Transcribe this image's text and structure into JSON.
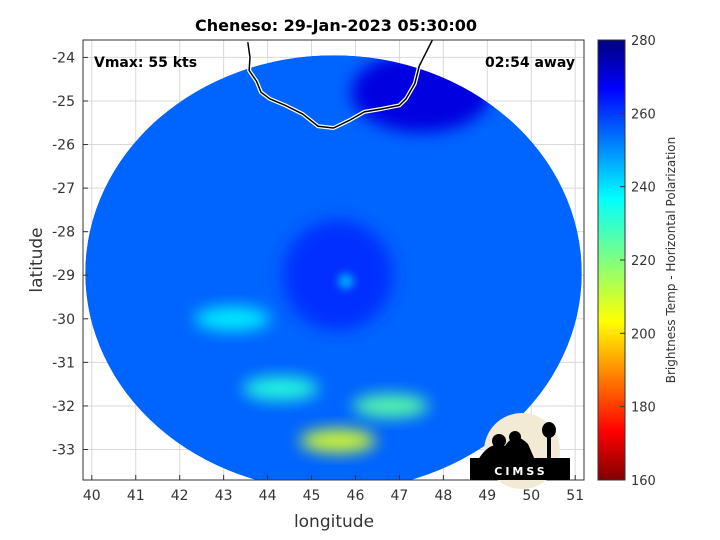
{
  "chart_data": {
    "type": "heatmap",
    "title": "Cheneso: 29-Jan-2023 05:30:00",
    "xlabel": "longitude",
    "ylabel": "latitude",
    "xlim": [
      39.8,
      51.2
    ],
    "ylim": [
      -33.7,
      -23.6
    ],
    "xticks": [
      "40",
      "41",
      "42",
      "43",
      "44",
      "45",
      "46",
      "47",
      "48",
      "49",
      "50",
      "51"
    ],
    "yticks": [
      "-24",
      "-25",
      "-26",
      "-27",
      "-28",
      "-29",
      "-30",
      "-31",
      "-32",
      "-33"
    ],
    "grid": true,
    "vmax_text": "Vmax: 55 kts",
    "time_away_text": "02:54 away",
    "swath_center": [
      45.5,
      -28.95
    ],
    "swath_radius_deg_lon": 5.65,
    "swath_radius_deg_lat": 5.0,
    "background_temp": 255,
    "features": [
      {
        "kind": "eye-ring",
        "lon": 45.6,
        "lat": -29.0,
        "temp": 262
      },
      {
        "kind": "warm-band",
        "lon": 45.6,
        "lat": -32.8,
        "temp": 208
      },
      {
        "kind": "warm-band",
        "lon": 46.8,
        "lat": -32.0,
        "temp": 225
      },
      {
        "kind": "warm-band",
        "lon": 44.3,
        "lat": -31.6,
        "temp": 232
      },
      {
        "kind": "warm-band",
        "lon": 43.2,
        "lat": -30.0,
        "temp": 238
      },
      {
        "kind": "cold-cap",
        "lon": 47.5,
        "lat": -24.8,
        "temp": 270
      }
    ],
    "coastline": [
      [
        43.55,
        -23.65
      ],
      [
        43.6,
        -24.0
      ],
      [
        43.58,
        -24.3
      ],
      [
        43.75,
        -24.55
      ],
      [
        43.85,
        -24.8
      ],
      [
        44.05,
        -24.95
      ],
      [
        44.4,
        -25.1
      ],
      [
        44.8,
        -25.3
      ],
      [
        45.15,
        -25.58
      ],
      [
        45.5,
        -25.62
      ],
      [
        45.85,
        -25.45
      ],
      [
        46.2,
        -25.25
      ],
      [
        46.6,
        -25.18
      ],
      [
        47.0,
        -25.1
      ],
      [
        47.15,
        -24.95
      ],
      [
        47.35,
        -24.6
      ],
      [
        47.45,
        -24.2
      ],
      [
        47.65,
        -23.8
      ],
      [
        47.75,
        -23.6
      ]
    ],
    "colorbar": {
      "label": "Brightness Temp - Horizontal Polarization",
      "min": 160,
      "max": 280,
      "ticks": [
        "160",
        "180",
        "200",
        "220",
        "240",
        "260",
        "280"
      ],
      "colormap": "jet"
    }
  },
  "logo": {
    "text": "CIMSS"
  }
}
